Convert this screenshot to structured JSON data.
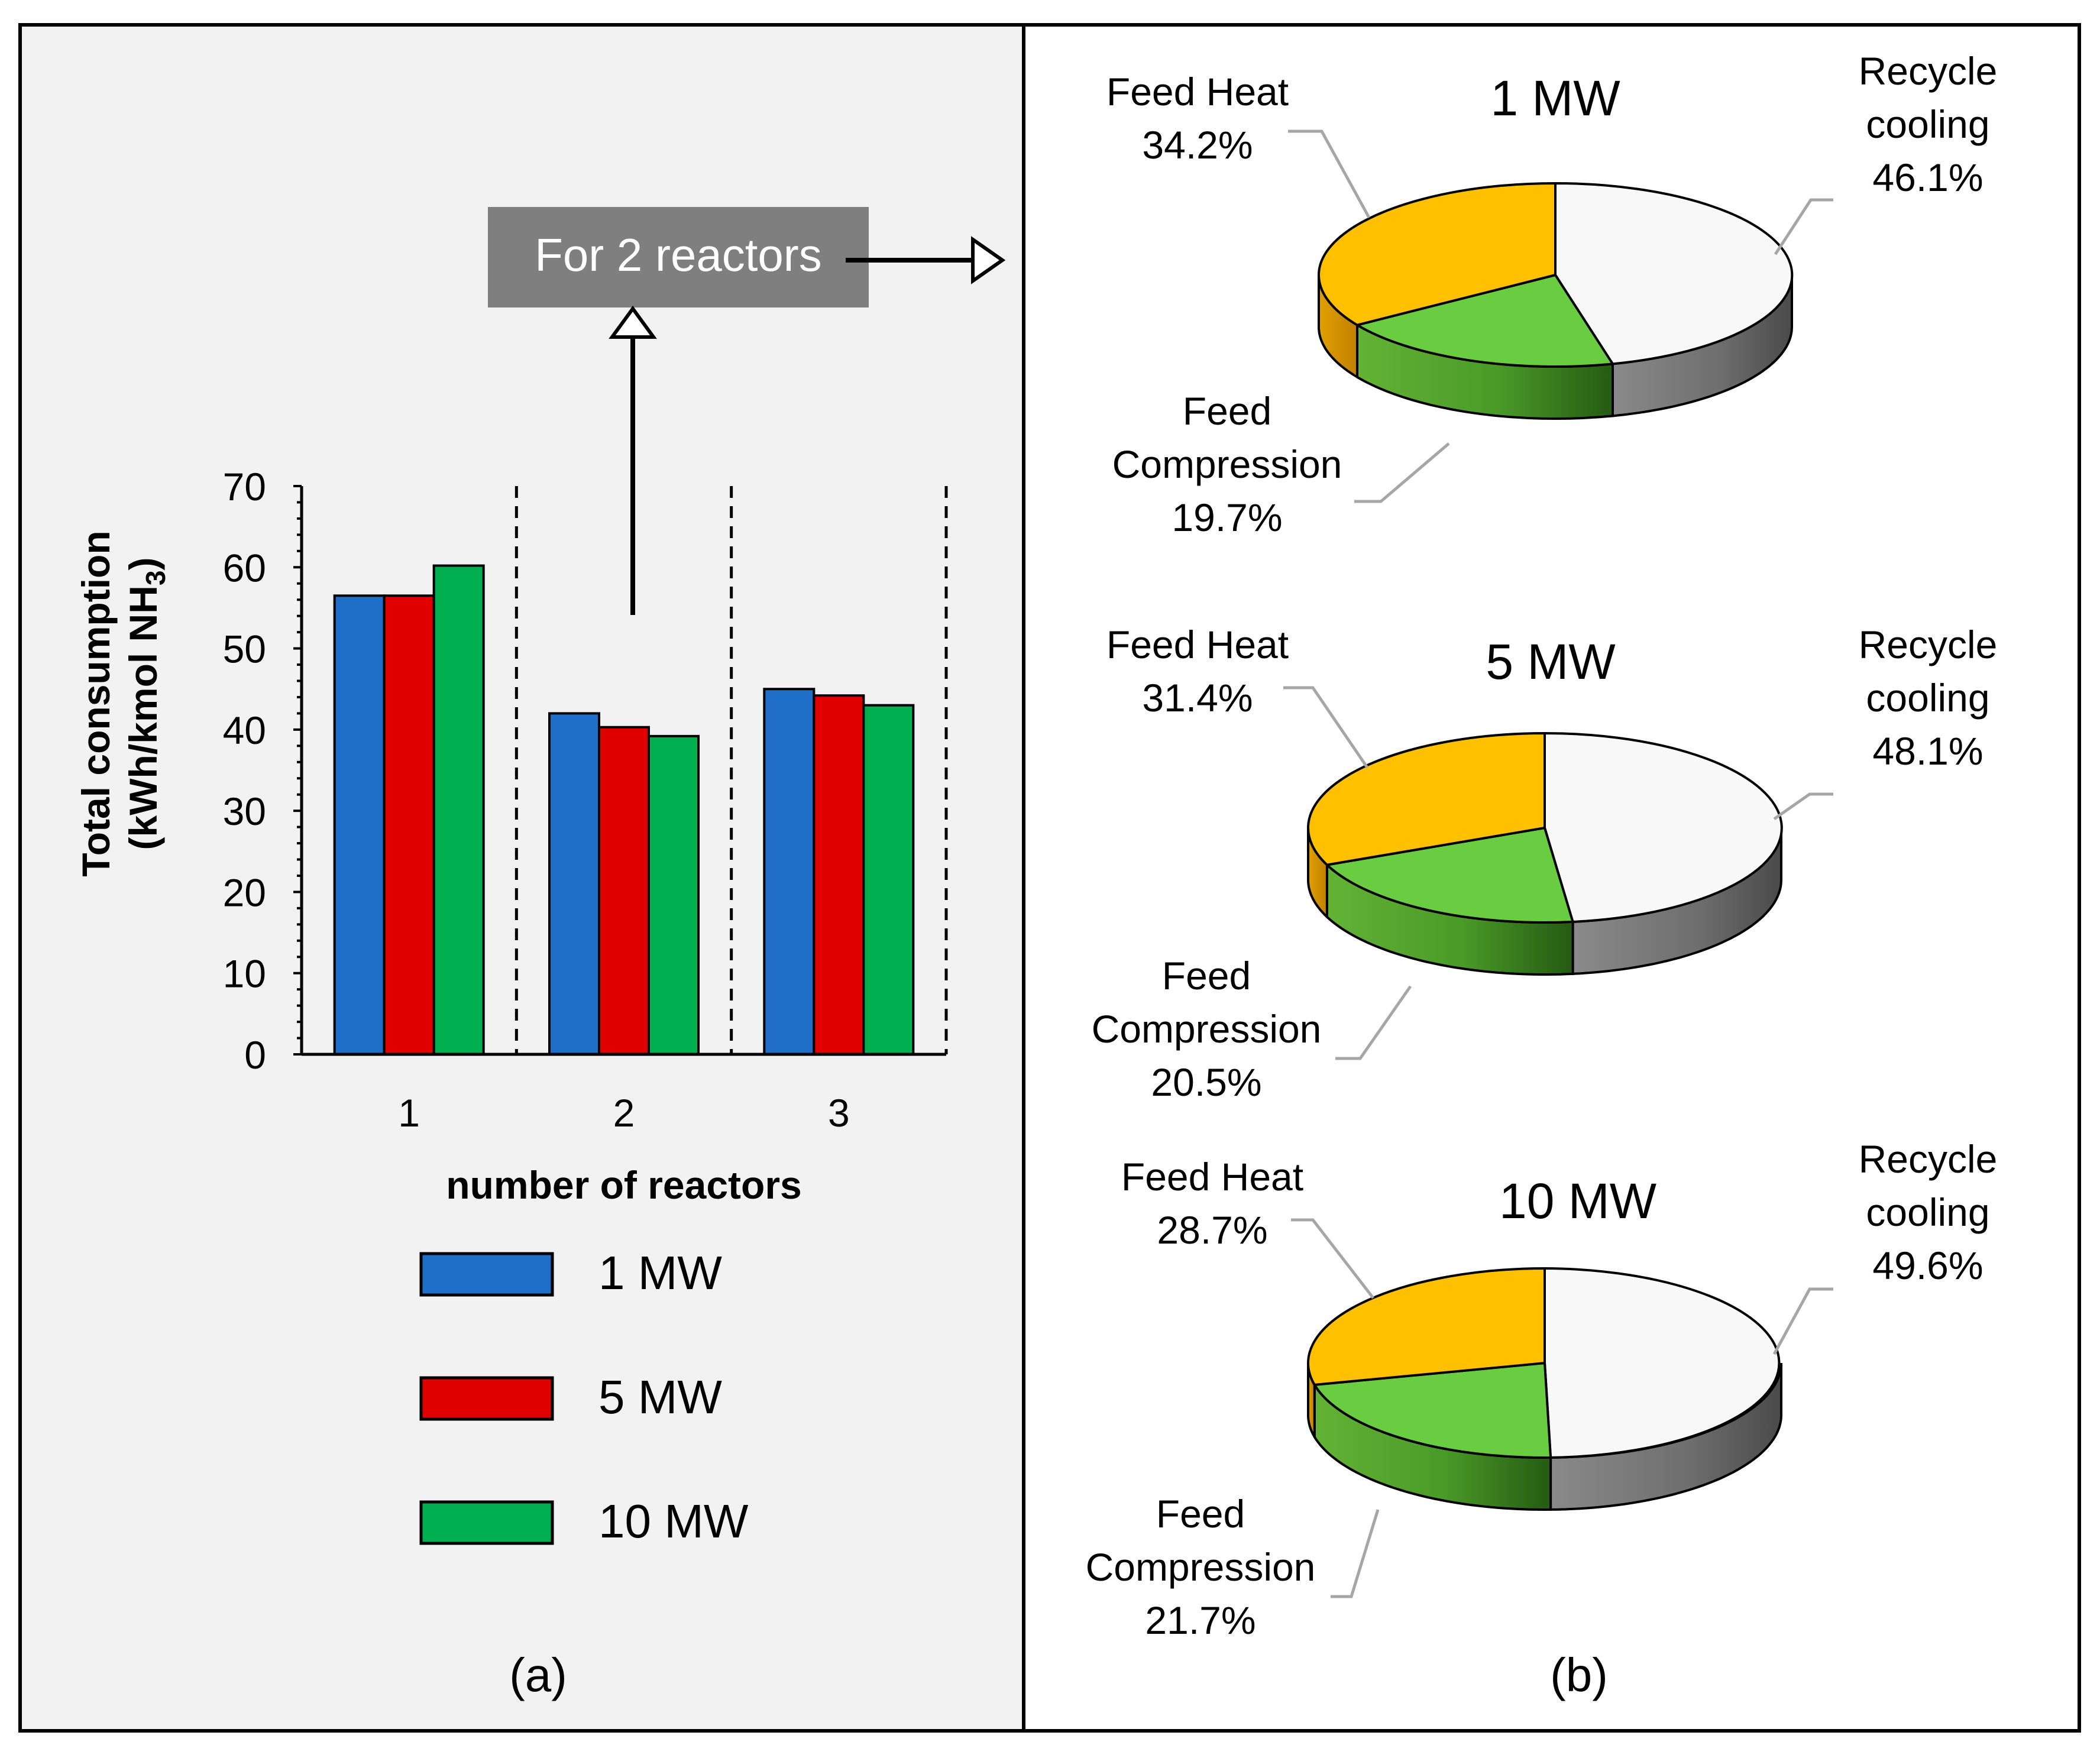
{
  "figure": {
    "label_a": "(a)",
    "label_b": "(b)"
  },
  "annotation": {
    "text": "For 2 reactors"
  },
  "colors": {
    "mw1": "#1F6FC9",
    "mw5": "#E00000",
    "mw10": "#00B050",
    "feed_heat": "#FFC000",
    "feed_compression": "#6ACD41",
    "recycle_cooling": "#F8F8F8",
    "panel_a_bg": "#F2F2F2",
    "annotation_bg": "#7F7F7F"
  },
  "chart_data": [
    {
      "type": "bar",
      "title": "",
      "xlabel": "number of reactors",
      "ylabel": "Total consumption",
      "ylabel_line2": "(kWh/kmol NH",
      "ylabel_sub": "3",
      "ylabel_close": ")",
      "categories": [
        "1",
        "2",
        "3"
      ],
      "ylim": [
        0,
        70
      ],
      "yticks": [
        "0",
        "10",
        "20",
        "30",
        "40",
        "50",
        "60",
        "70"
      ],
      "series": [
        {
          "name": "1 MW",
          "values": [
            56.5,
            42,
            45
          ]
        },
        {
          "name": "5 MW",
          "values": [
            56.5,
            40.3,
            44.2
          ]
        },
        {
          "name": "10 MW",
          "values": [
            60.2,
            39.2,
            43
          ]
        }
      ],
      "legend": [
        "1 MW",
        "5 MW",
        "10 MW"
      ],
      "legend_position": "bottom",
      "separators": "dashed vertical lines between categories"
    },
    {
      "type": "pie",
      "title": "1 MW",
      "slices": [
        {
          "label": "Recycle cooling",
          "label_line1": "Recycle",
          "label_line2": "cooling",
          "value": 46.1,
          "pct": "46.1%"
        },
        {
          "label": "Feed Compression",
          "label_line1": "Feed",
          "label_line2": "Compression",
          "value": 19.7,
          "pct": "19.7%"
        },
        {
          "label": "Feed Heat",
          "label_line1": "Feed Heat",
          "value": 34.2,
          "pct": "34.2%"
        }
      ]
    },
    {
      "type": "pie",
      "title": "5 MW",
      "slices": [
        {
          "label": "Recycle cooling",
          "label_line1": "Recycle",
          "label_line2": "cooling",
          "value": 48.1,
          "pct": "48.1%"
        },
        {
          "label": "Feed Compression",
          "label_line1": "Feed",
          "label_line2": "Compression",
          "value": 20.5,
          "pct": "20.5%"
        },
        {
          "label": "Feed Heat",
          "label_line1": "Feed Heat",
          "value": 31.4,
          "pct": "31.4%"
        }
      ]
    },
    {
      "type": "pie",
      "title": "10 MW",
      "slices": [
        {
          "label": "Recycle cooling",
          "label_line1": "Recycle",
          "label_line2": "cooling",
          "value": 49.6,
          "pct": "49.6%"
        },
        {
          "label": "Feed Compression",
          "label_line1": "Feed",
          "label_line2": "Compression",
          "value": 21.7,
          "pct": "21.7%"
        },
        {
          "label": "Feed Heat",
          "label_line1": "Feed Heat",
          "value": 28.7,
          "pct": "28.7%"
        }
      ]
    }
  ]
}
